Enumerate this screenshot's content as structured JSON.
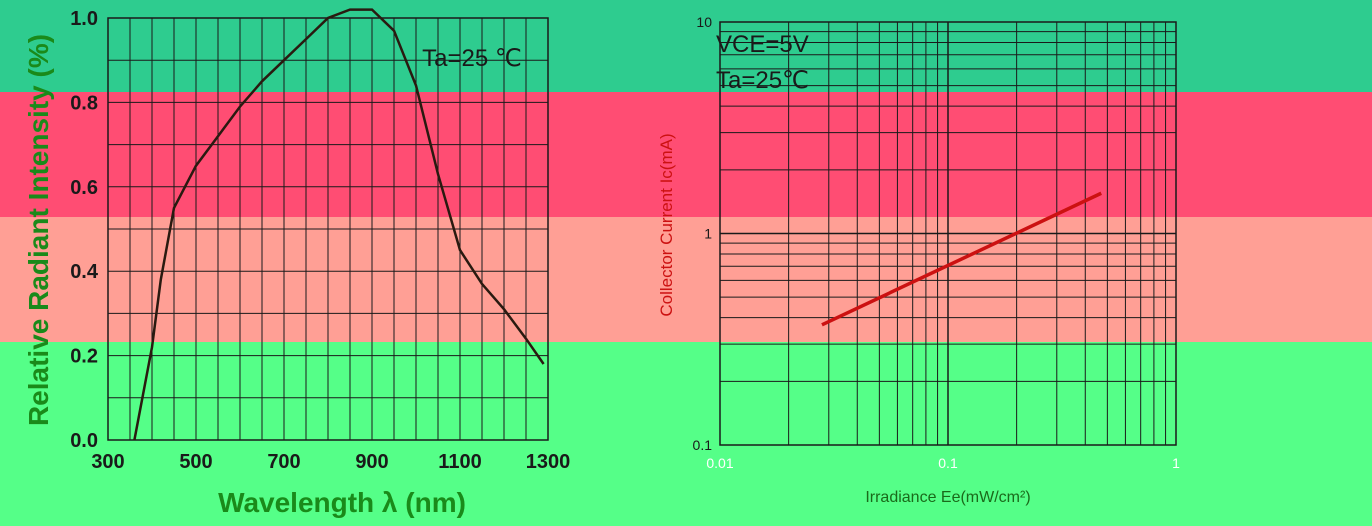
{
  "theme": {
    "bands": [
      {
        "name": "top-band",
        "color": "#2ecc8f"
      },
      {
        "name": "upper-band",
        "color": "#ff4d73"
      },
      {
        "name": "middle-band",
        "color": "#ff9f95"
      },
      {
        "name": "lower-band",
        "color": "#55ff88"
      }
    ],
    "grid_color": "#1a1a1a",
    "curve_color": "#2a1a10",
    "line_color": "#cc1111",
    "left_label_color": "#1a8a1a"
  },
  "chart_data": [
    {
      "type": "line",
      "title": "",
      "annotation": "Ta=25 ℃",
      "xlabel": "Wavelength λ (nm)",
      "ylabel": "Relative Radiant Intensity (%)",
      "xlim": [
        300,
        1300
      ],
      "ylim": [
        0.0,
        1.0
      ],
      "x_ticks": [
        "300",
        "500",
        "700",
        "900",
        "1100",
        "1300"
      ],
      "y_ticks": [
        "0.0",
        "0.2",
        "0.4",
        "0.6",
        "0.8",
        "1.0"
      ],
      "grid": true,
      "series": [
        {
          "x": [
            360,
            400,
            420,
            450,
            500,
            550,
            600,
            650,
            700,
            750,
            800,
            850,
            900,
            950,
            1000,
            1050,
            1100,
            1150,
            1200,
            1250,
            1290
          ],
          "y": [
            0.0,
            0.22,
            0.38,
            0.55,
            0.65,
            0.72,
            0.79,
            0.85,
            0.9,
            0.95,
            1.0,
            1.02,
            1.02,
            0.97,
            0.84,
            0.63,
            0.45,
            0.37,
            0.31,
            0.24,
            0.18
          ]
        }
      ]
    },
    {
      "type": "line",
      "title": "",
      "annotation_lines": [
        "VCE=5V",
        "Ta=25℃"
      ],
      "xlabel": "Irradiance Ee(mW/cm²)",
      "ylabel": "Collector Current Ic(mA)",
      "x_scale": "log",
      "y_scale": "log",
      "xlim": [
        0.01,
        1
      ],
      "ylim": [
        0.1,
        10
      ],
      "x_ticks": [
        "0.01",
        "0.1",
        "1"
      ],
      "y_ticks": [
        "0.1",
        "1",
        "10"
      ],
      "grid": true,
      "series": [
        {
          "x": [
            0.028,
            0.47
          ],
          "y": [
            0.37,
            1.55
          ]
        }
      ]
    }
  ]
}
